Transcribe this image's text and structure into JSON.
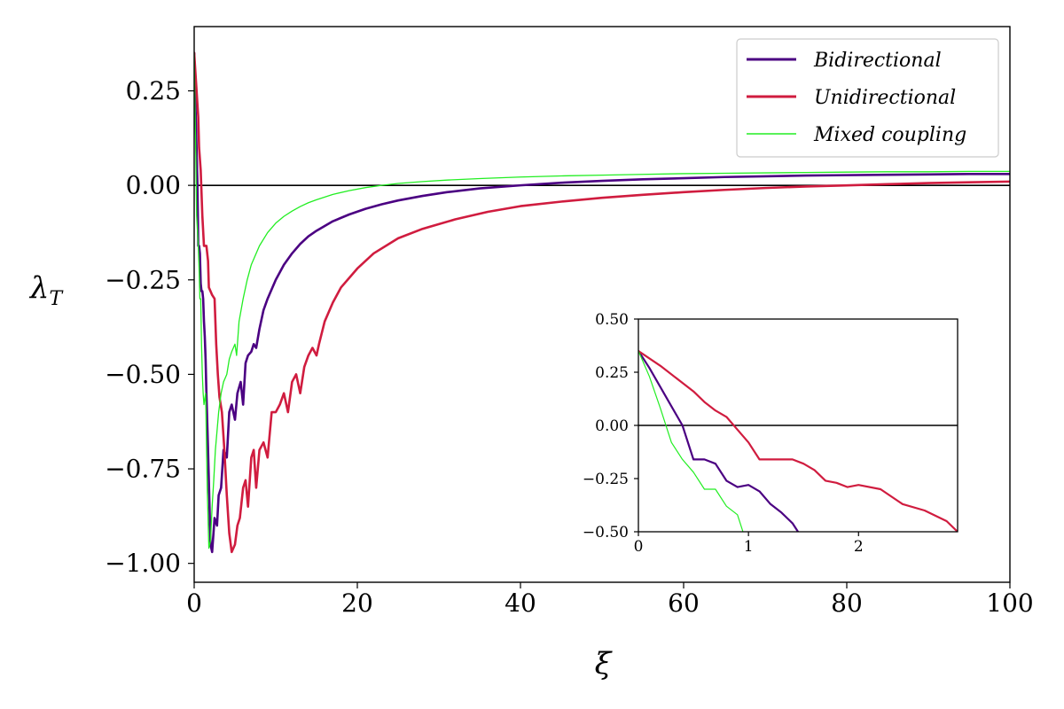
{
  "chart_data": [
    {
      "type": "line",
      "xlabel": "ξ",
      "ylabel": "λT",
      "xlim": [
        0,
        100
      ],
      "ylim": [
        -1.05,
        0.42
      ],
      "xticks": [
        0,
        20,
        40,
        60,
        80,
        100
      ],
      "xtick_labels": [
        "0",
        "20",
        "40",
        "60",
        "80",
        "100"
      ],
      "yticks": [
        0.25,
        0.0,
        -0.25,
        -0.5,
        -0.75,
        -1.0
      ],
      "ytick_labels": [
        "0.25",
        "0.00",
        "−0.25",
        "−0.50",
        "−0.75",
        "−1.00"
      ],
      "reference_line_y": 0,
      "legend_position": "top-right",
      "grid": false,
      "series": [
        {
          "name": "Bidirectional",
          "color": "#4b0082",
          "x": [
            0,
            0.4,
            0.5,
            0.6,
            0.7,
            0.8,
            0.9,
            1.0,
            1.1,
            1.2,
            1.3,
            1.4,
            1.5,
            1.7,
            2.0,
            2.2,
            2.5,
            2.8,
            3.0,
            3.3,
            3.6,
            4.0,
            4.3,
            4.6,
            5.0,
            5.3,
            5.7,
            6.0,
            6.3,
            6.6,
            7.0,
            7.3,
            7.6,
            8.0,
            8.5,
            9,
            10,
            11,
            12,
            13,
            14,
            15,
            17,
            19,
            21,
            23,
            25,
            28,
            31,
            35,
            40,
            45,
            50,
            55,
            60,
            65,
            70,
            75,
            80,
            85,
            90,
            95,
            100
          ],
          "y": [
            0.35,
            0.0,
            -0.16,
            -0.16,
            -0.18,
            -0.26,
            -0.28,
            -0.28,
            -0.3,
            -0.36,
            -0.4,
            -0.46,
            -0.55,
            -0.7,
            -0.95,
            -0.97,
            -0.88,
            -0.9,
            -0.82,
            -0.8,
            -0.7,
            -0.72,
            -0.6,
            -0.58,
            -0.62,
            -0.55,
            -0.52,
            -0.58,
            -0.47,
            -0.45,
            -0.44,
            -0.42,
            -0.43,
            -0.38,
            -0.33,
            -0.3,
            -0.25,
            -0.21,
            -0.18,
            -0.155,
            -0.135,
            -0.12,
            -0.095,
            -0.077,
            -0.062,
            -0.05,
            -0.04,
            -0.028,
            -0.018,
            -0.008,
            0.0,
            0.007,
            0.012,
            0.016,
            0.019,
            0.022,
            0.024,
            0.026,
            0.027,
            0.028,
            0.029,
            0.03,
            0.03
          ]
        },
        {
          "name": "Unidirectional",
          "color": "#d01c3f",
          "x": [
            0,
            0.5,
            0.6,
            0.8,
            0.9,
            1.0,
            1.2,
            1.5,
            1.7,
            1.8,
            2.0,
            2.2,
            2.5,
            2.7,
            2.9,
            3.1,
            3.4,
            3.7,
            4.0,
            4.3,
            4.6,
            5.0,
            5.3,
            5.6,
            6.0,
            6.3,
            6.6,
            7.0,
            7.3,
            7.6,
            8.0,
            8.5,
            9.0,
            9.5,
            10,
            10.5,
            11,
            11.5,
            12,
            12.5,
            13,
            13.5,
            14,
            14.5,
            15,
            15.3,
            16,
            17,
            18,
            20,
            22,
            25,
            28,
            32,
            36,
            40,
            45,
            50,
            55,
            60,
            65,
            70,
            75,
            80,
            85,
            90,
            95,
            100
          ],
          "y": [
            0.35,
            0.18,
            0.1,
            0.04,
            -0.02,
            -0.08,
            -0.16,
            -0.16,
            -0.2,
            -0.27,
            -0.28,
            -0.29,
            -0.3,
            -0.42,
            -0.5,
            -0.56,
            -0.6,
            -0.7,
            -0.82,
            -0.92,
            -0.97,
            -0.95,
            -0.9,
            -0.88,
            -0.8,
            -0.78,
            -0.85,
            -0.72,
            -0.7,
            -0.8,
            -0.7,
            -0.68,
            -0.72,
            -0.6,
            -0.6,
            -0.58,
            -0.55,
            -0.6,
            -0.52,
            -0.5,
            -0.55,
            -0.48,
            -0.45,
            -0.43,
            -0.45,
            -0.42,
            -0.36,
            -0.31,
            -0.27,
            -0.22,
            -0.18,
            -0.14,
            -0.115,
            -0.09,
            -0.07,
            -0.055,
            -0.043,
            -0.033,
            -0.025,
            -0.018,
            -0.012,
            -0.007,
            -0.003,
            0.0,
            0.003,
            0.006,
            0.008,
            0.01
          ]
        },
        {
          "name": "Mixed coupling",
          "color": "#22ee22",
          "x": [
            0,
            0.1,
            0.2,
            0.3,
            0.5,
            0.6,
            0.7,
            0.8,
            0.9,
            1.0,
            1.1,
            1.2,
            1.4,
            1.6,
            1.8,
            2.0,
            2.2,
            2.4,
            2.6,
            2.8,
            3.0,
            3.3,
            3.6,
            4.0,
            4.3,
            4.6,
            5.0,
            5.2,
            5.5,
            6,
            6.5,
            7,
            8,
            9,
            10,
            11,
            12,
            13,
            14,
            15,
            17,
            19,
            21,
            23,
            25,
            28,
            31,
            35,
            40,
            45,
            50,
            55,
            60,
            65,
            70,
            75,
            80,
            85,
            90,
            95,
            100
          ],
          "y": [
            0.35,
            0.2,
            0.08,
            -0.08,
            -0.16,
            -0.22,
            -0.3,
            -0.3,
            -0.42,
            -0.5,
            -0.55,
            -0.58,
            -0.55,
            -0.8,
            -0.96,
            -0.94,
            -0.85,
            -0.78,
            -0.7,
            -0.65,
            -0.6,
            -0.55,
            -0.52,
            -0.5,
            -0.46,
            -0.44,
            -0.42,
            -0.45,
            -0.36,
            -0.3,
            -0.25,
            -0.21,
            -0.16,
            -0.125,
            -0.1,
            -0.082,
            -0.068,
            -0.056,
            -0.046,
            -0.038,
            -0.024,
            -0.014,
            -0.006,
            0.0,
            0.005,
            0.01,
            0.014,
            0.018,
            0.022,
            0.025,
            0.027,
            0.029,
            0.031,
            0.032,
            0.033,
            0.034,
            0.035,
            0.036,
            0.036,
            0.037,
            0.037
          ]
        }
      ]
    },
    {
      "type": "line",
      "inset": true,
      "xlim": [
        0,
        2.9
      ],
      "ylim": [
        -0.5,
        0.5
      ],
      "xticks": [
        0,
        1,
        2
      ],
      "xtick_labels": [
        "0",
        "1",
        "2"
      ],
      "yticks": [
        0.5,
        0.25,
        0.0,
        -0.25,
        -0.5
      ],
      "ytick_labels": [
        "0.50",
        "0.25",
        "0.00",
        "−0.25",
        "−0.50"
      ],
      "reference_line_y": 0,
      "series": [
        {
          "name": "Bidirectional",
          "color": "#4b0082",
          "x": [
            0,
            0.1,
            0.2,
            0.3,
            0.4,
            0.5,
            0.6,
            0.7,
            0.8,
            0.9,
            1.0,
            1.1,
            1.2,
            1.3,
            1.4,
            1.45
          ],
          "y": [
            0.35,
            0.27,
            0.18,
            0.09,
            0.0,
            -0.16,
            -0.16,
            -0.18,
            -0.26,
            -0.29,
            -0.28,
            -0.31,
            -0.37,
            -0.41,
            -0.46,
            -0.5
          ]
        },
        {
          "name": "Unidirectional",
          "color": "#d01c3f",
          "x": [
            0,
            0.2,
            0.4,
            0.5,
            0.6,
            0.7,
            0.8,
            0.9,
            1.0,
            1.1,
            1.2,
            1.3,
            1.4,
            1.5,
            1.6,
            1.7,
            1.8,
            1.9,
            2.0,
            2.2,
            2.4,
            2.6,
            2.8,
            2.9
          ],
          "y": [
            0.35,
            0.28,
            0.2,
            0.16,
            0.11,
            0.07,
            0.04,
            -0.02,
            -0.08,
            -0.16,
            -0.16,
            -0.16,
            -0.16,
            -0.18,
            -0.21,
            -0.26,
            -0.27,
            -0.29,
            -0.28,
            -0.3,
            -0.37,
            -0.4,
            -0.45,
            -0.5
          ]
        },
        {
          "name": "Mixed coupling",
          "color": "#22ee22",
          "x": [
            0,
            0.1,
            0.2,
            0.3,
            0.4,
            0.5,
            0.6,
            0.7,
            0.8,
            0.9,
            0.95
          ],
          "y": [
            0.35,
            0.23,
            0.08,
            -0.08,
            -0.16,
            -0.22,
            -0.3,
            -0.3,
            -0.38,
            -0.42,
            -0.5
          ]
        }
      ]
    }
  ]
}
